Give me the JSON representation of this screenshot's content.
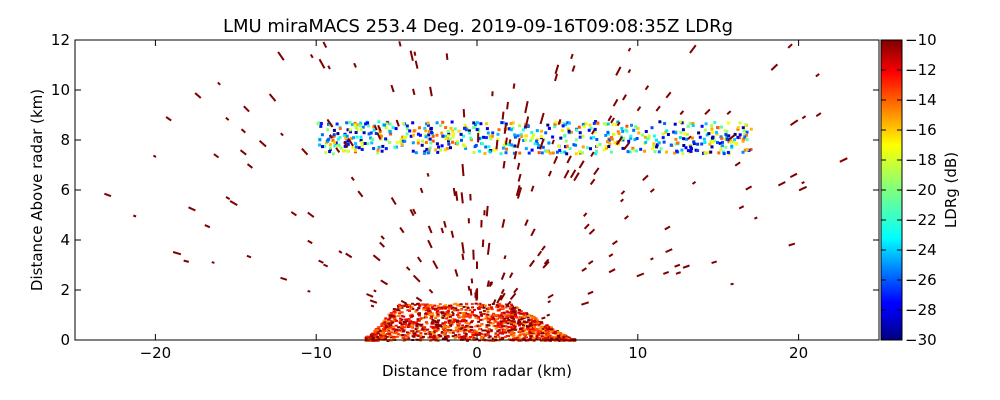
{
  "chart_data": {
    "type": "heatmap",
    "title": "LMU miraMACS 253.4 Deg. 2019-09-16T09:08:35Z  LDRg",
    "xlabel": "Distance from radar (km)",
    "ylabel": "Distance Above radar  (km)",
    "xlim": [
      -25,
      25
    ],
    "ylim": [
      0,
      12
    ],
    "x_ticks": [
      -20,
      -10,
      0,
      10,
      20
    ],
    "y_ticks": [
      0,
      2,
      4,
      6,
      8,
      10,
      12
    ],
    "grid": false,
    "colorbar": {
      "label": "LDRg (dB)",
      "range": [
        -30,
        -10
      ],
      "ticks": [
        -30,
        -28,
        -26,
        -24,
        -22,
        -20,
        -18,
        -16,
        -14,
        -12,
        -10
      ],
      "colormap": "jet"
    },
    "regions": [
      {
        "name": "Near-surface echo",
        "x_range": [
          -7,
          6
        ],
        "y_range": [
          0,
          1.5
        ],
        "ldr_db_approx": -12
      },
      {
        "name": "Cloud layer",
        "x_range": [
          -10,
          17
        ],
        "y_range": [
          7.5,
          8.8
        ],
        "ldr_db_range": [
          -30,
          -14
        ]
      },
      {
        "name": "Radial streaks",
        "x_range": [
          -23,
          23
        ],
        "y_range": [
          0,
          12
        ],
        "ldr_db_approx": -10
      }
    ]
  }
}
